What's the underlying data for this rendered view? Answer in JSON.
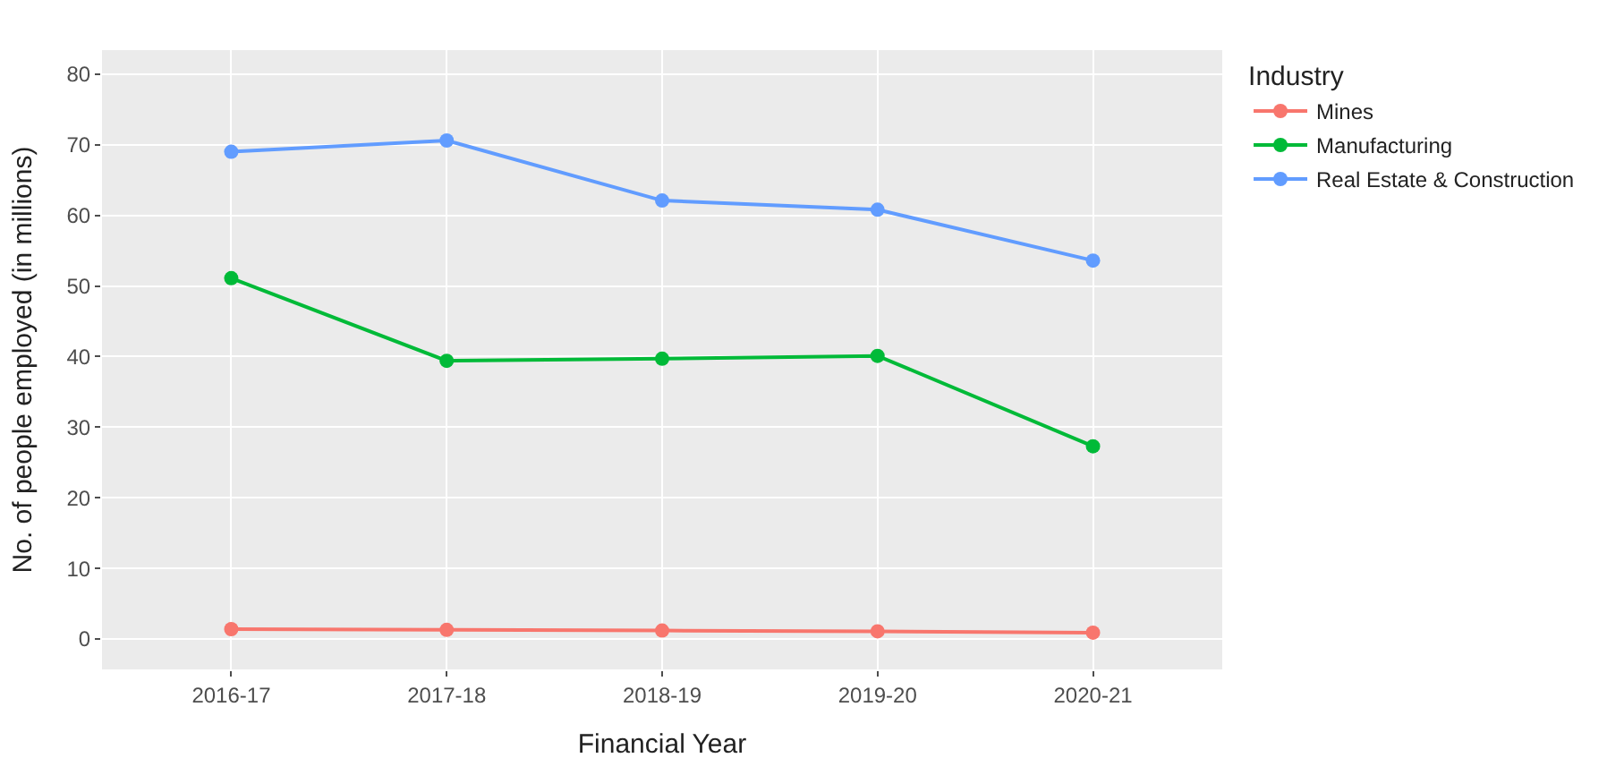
{
  "chart_data": {
    "type": "line",
    "xlabel": "Financial Year",
    "ylabel": "No. of people employed (in millions)",
    "legend_title": "Industry",
    "categories": [
      "2016-17",
      "2017-18",
      "2018-19",
      "2019-20",
      "2020-21"
    ],
    "series": [
      {
        "name": "Mines",
        "color": "#f8766d",
        "values": [
          1.4,
          1.3,
          1.2,
          1.1,
          0.9
        ]
      },
      {
        "name": "Manufacturing",
        "color": "#00ba38",
        "values": [
          51.1,
          39.4,
          39.7,
          40.1,
          27.3
        ]
      },
      {
        "name": "Real Estate & Construction",
        "color": "#619cff",
        "values": [
          69.0,
          70.6,
          62.1,
          60.8,
          53.6
        ]
      }
    ],
    "ylim": [
      -4.3,
      83.4
    ],
    "yticks": [
      0,
      10,
      20,
      30,
      40,
      50,
      60,
      70,
      80
    ],
    "grid": true,
    "legend": "top right",
    "marker": "circle",
    "line_style": "solid"
  }
}
